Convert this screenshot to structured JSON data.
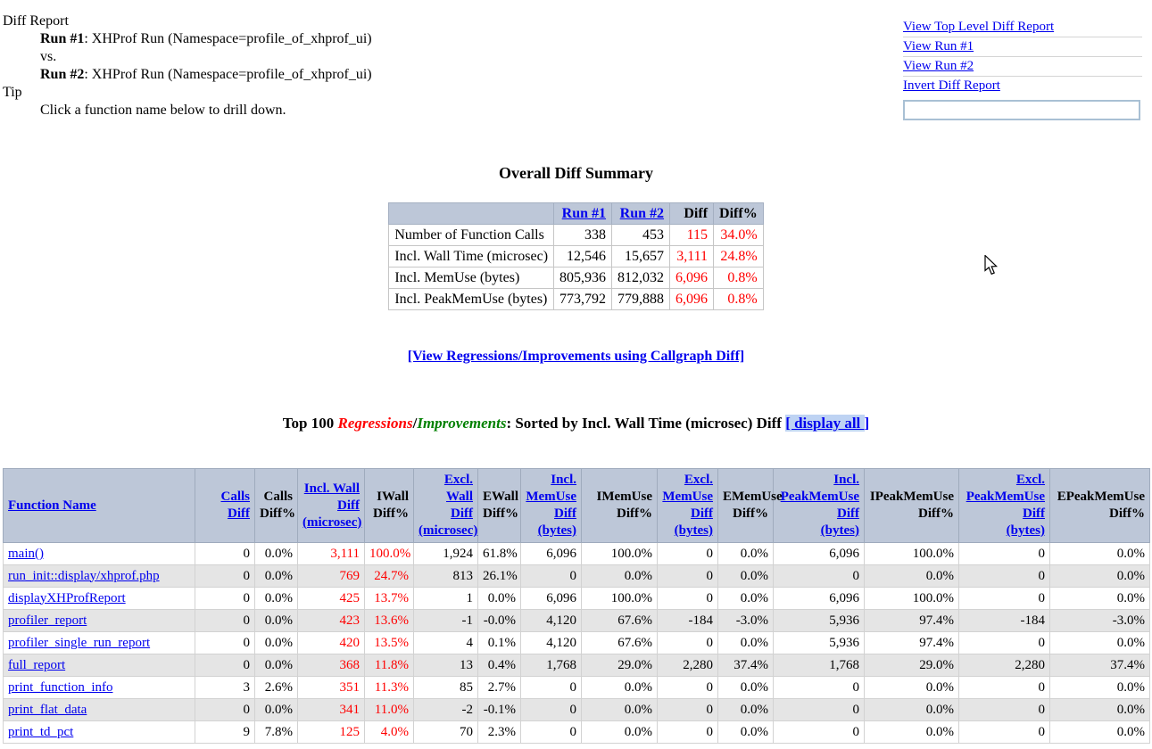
{
  "info": {
    "title": "Diff Report",
    "run1_label": "Run #1",
    "run1_value": ": XHProf Run (Namespace=profile_of_xhprof_ui)",
    "vs": "vs.",
    "run2_label": "Run #2",
    "run2_value": ": XHProf Run (Namespace=profile_of_xhprof_ui)",
    "tip_label": "Tip",
    "tip_value": "Click a function name below to drill down."
  },
  "nav": {
    "links": [
      "View Top Level Diff Report",
      "View Run #1",
      "View Run #2",
      "Invert Diff Report"
    ],
    "search_value": ""
  },
  "summary": {
    "title": "Overall Diff Summary",
    "columns": [
      {
        "label": "Run #1",
        "link": true
      },
      {
        "label": "Run #2",
        "link": true
      },
      {
        "label": "Diff",
        "link": false
      },
      {
        "label": "Diff%",
        "link": false
      }
    ],
    "rows": [
      {
        "label": "Number of Function Calls",
        "run1": "338",
        "run2": "453",
        "diff": "115",
        "diff_pct": "34.0%"
      },
      {
        "label": "Incl. Wall Time (microsec)",
        "run1": "12,546",
        "run2": "15,657",
        "diff": "3,111",
        "diff_pct": "24.8%"
      },
      {
        "label": "Incl. MemUse (bytes)",
        "run1": "805,936",
        "run2": "812,032",
        "diff": "6,096",
        "diff_pct": "0.8%"
      },
      {
        "label": "Incl. PeakMemUse (bytes)",
        "run1": "773,792",
        "run2": "779,888",
        "diff": "6,096",
        "diff_pct": "0.8%"
      }
    ]
  },
  "callgraph_link": "[View Regressions/Improvements using Callgraph Diff]",
  "top100": {
    "prefix": "Top 100 ",
    "regressions": "Regressions",
    "slash": "/",
    "improvements": "Improvements",
    "suffix": ": Sorted by Incl. Wall Time (microsec) Diff ",
    "display_all_hl": "[ display all ",
    "display_all_end": "]"
  },
  "diff_table": {
    "columns": [
      {
        "name": "function-name",
        "lines": [
          "Function Name"
        ],
        "link": true,
        "align": "left"
      },
      {
        "name": "calls-diff",
        "lines": [
          "Calls Diff"
        ],
        "link": true
      },
      {
        "name": "calls-diff-pct",
        "lines": [
          "Calls",
          "Diff%"
        ],
        "link": false
      },
      {
        "name": "incl-wall-diff",
        "lines": [
          "Incl. Wall",
          "Diff",
          "(microsec)"
        ],
        "link": true
      },
      {
        "name": "iwall-diff-pct",
        "lines": [
          "IWall",
          "Diff%"
        ],
        "link": false
      },
      {
        "name": "excl-wall-diff",
        "lines": [
          "Excl. Wall",
          "Diff",
          "(microsec)"
        ],
        "link": true
      },
      {
        "name": "ewall-diff-pct",
        "lines": [
          "EWall",
          "Diff%"
        ],
        "link": false
      },
      {
        "name": "incl-memuse-diff",
        "lines": [
          "Incl.",
          "MemUse",
          "Diff",
          "(bytes)"
        ],
        "link": true
      },
      {
        "name": "imemuse-diff-pct",
        "lines": [
          "IMemUse",
          "Diff%"
        ],
        "link": false
      },
      {
        "name": "excl-memuse-diff",
        "lines": [
          "Excl.",
          "MemUse",
          "Diff",
          "(bytes)"
        ],
        "link": true
      },
      {
        "name": "ememuse-diff-pct",
        "lines": [
          "EMemUse",
          "Diff%"
        ],
        "link": false
      },
      {
        "name": "incl-peakmemuse-diff",
        "lines": [
          "Incl.",
          "PeakMemUse",
          "Diff",
          "(bytes)"
        ],
        "link": true
      },
      {
        "name": "ipeakmemuse-diff-pct",
        "lines": [
          "IPeakMemUse",
          "Diff%"
        ],
        "link": false
      },
      {
        "name": "excl-peakmemuse-diff",
        "lines": [
          "Excl.",
          "PeakMemUse",
          "Diff",
          "(bytes)"
        ],
        "link": true
      },
      {
        "name": "epeakmemuse-diff-pct",
        "lines": [
          "EPeakMemUse",
          "Diff%"
        ],
        "link": false
      }
    ],
    "red_value_indexes": [
      2,
      3
    ],
    "rows": [
      {
        "fn": "main()",
        "values": [
          "0",
          "0.0%",
          "3,111",
          "100.0%",
          "1,924",
          "61.8%",
          "6,096",
          "100.0%",
          "0",
          "0.0%",
          "6,096",
          "100.0%",
          "0",
          "0.0%"
        ]
      },
      {
        "fn": "run_init::display/xhprof.php",
        "values": [
          "0",
          "0.0%",
          "769",
          "24.7%",
          "813",
          "26.1%",
          "0",
          "0.0%",
          "0",
          "0.0%",
          "0",
          "0.0%",
          "0",
          "0.0%"
        ]
      },
      {
        "fn": "displayXHProfReport",
        "values": [
          "0",
          "0.0%",
          "425",
          "13.7%",
          "1",
          "0.0%",
          "6,096",
          "100.0%",
          "0",
          "0.0%",
          "6,096",
          "100.0%",
          "0",
          "0.0%"
        ]
      },
      {
        "fn": "profiler_report",
        "values": [
          "0",
          "0.0%",
          "423",
          "13.6%",
          "-1",
          "-0.0%",
          "4,120",
          "67.6%",
          "-184",
          "-3.0%",
          "5,936",
          "97.4%",
          "-184",
          "-3.0%"
        ]
      },
      {
        "fn": "profiler_single_run_report",
        "values": [
          "0",
          "0.0%",
          "420",
          "13.5%",
          "4",
          "0.1%",
          "4,120",
          "67.6%",
          "0",
          "0.0%",
          "5,936",
          "97.4%",
          "0",
          "0.0%"
        ]
      },
      {
        "fn": "full_report",
        "values": [
          "0",
          "0.0%",
          "368",
          "11.8%",
          "13",
          "0.4%",
          "1,768",
          "29.0%",
          "2,280",
          "37.4%",
          "1,768",
          "29.0%",
          "2,280",
          "37.4%"
        ]
      },
      {
        "fn": "print_function_info",
        "values": [
          "3",
          "2.6%",
          "351",
          "11.3%",
          "85",
          "2.7%",
          "0",
          "0.0%",
          "0",
          "0.0%",
          "0",
          "0.0%",
          "0",
          "0.0%"
        ]
      },
      {
        "fn": "print_flat_data",
        "values": [
          "0",
          "0.0%",
          "341",
          "11.0%",
          "-2",
          "-0.1%",
          "0",
          "0.0%",
          "0",
          "0.0%",
          "0",
          "0.0%",
          "0",
          "0.0%"
        ]
      },
      {
        "fn": "print_td_pct",
        "values": [
          "9",
          "7.8%",
          "125",
          "4.0%",
          "70",
          "2.3%",
          "0",
          "0.0%",
          "0",
          "0.0%",
          "0",
          "0.0%",
          "0",
          "0.0%"
        ]
      }
    ]
  },
  "colors": {
    "header_bg": "#bdc7d8",
    "alt_row_bg": "#e5e5e5",
    "link_blue": "#0000ee",
    "regression_red": "#ff0000",
    "improvement_green": "#008000",
    "display_all_highlight": "#bed3f3"
  }
}
